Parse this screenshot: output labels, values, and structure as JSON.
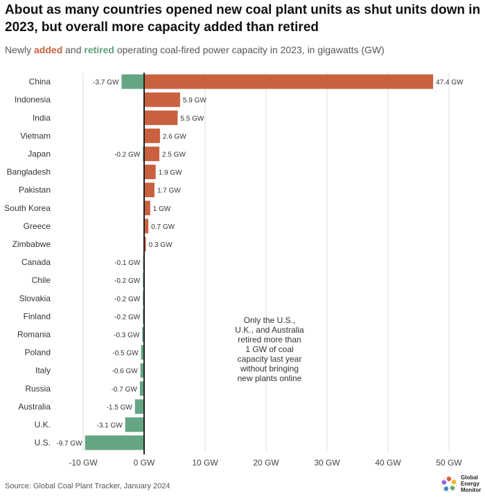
{
  "title": "About as many countries opened new coal plant units as shut units down in 2023, but overall more capacity added than retired",
  "subtitle": {
    "prefix": "Newly ",
    "added_word": "added",
    "middle": " and ",
    "retired_word": "retired",
    "suffix": " operating coal-fired power capacity in 2023, in gigawatts (GW)"
  },
  "source": "Source: Global Coal Plant Tracker, January 2024",
  "logo": {
    "line1": "Global",
    "line2": "Energy",
    "line3": "Monitor"
  },
  "colors": {
    "added": "#c9613f",
    "retired": "#64a583",
    "grid": "#dddddd",
    "zero_line": "#222222"
  },
  "chart_data": {
    "type": "bar",
    "orientation": "horizontal",
    "title": "About as many countries opened new coal plant units as shut units down in 2023, but overall more capacity added than retired",
    "xlabel": "",
    "ylabel": "",
    "xlim": [
      -10,
      50
    ],
    "x_ticks": [
      -10,
      0,
      10,
      20,
      30,
      40,
      50
    ],
    "x_tick_labels": [
      "-10 GW",
      "0 GW",
      "10 GW",
      "20 GW",
      "30 GW",
      "40 GW",
      "50 GW"
    ],
    "categories": [
      "China",
      "Indonesia",
      "India",
      "Vietnam",
      "Japan",
      "Bangladesh",
      "Pakistan",
      "South Korea",
      "Greece",
      "Zimbabwe",
      "Canada",
      "Chile",
      "Slovakia",
      "Finland",
      "Romania",
      "Poland",
      "Italy",
      "Russia",
      "Australia",
      "U.K.",
      "U.S."
    ],
    "series": [
      {
        "name": "added",
        "values": [
          47.4,
          5.9,
          5.5,
          2.6,
          2.5,
          1.9,
          1.7,
          1,
          0.7,
          0.3,
          null,
          null,
          null,
          null,
          null,
          null,
          null,
          null,
          null,
          null,
          null
        ],
        "labels": [
          "47.4 GW",
          "5.9 GW",
          "5.5 GW",
          "2.6 GW",
          "2.5 GW",
          "1.9 GW",
          "1.7 GW",
          "1 GW",
          "0.7 GW",
          "0.3 GW",
          "",
          "",
          "",
          "",
          "",
          "",
          "",
          "",
          "",
          "",
          ""
        ]
      },
      {
        "name": "retired",
        "values": [
          -3.7,
          null,
          null,
          null,
          -0.2,
          null,
          null,
          null,
          null,
          null,
          -0.1,
          -0.2,
          -0.2,
          -0.2,
          -0.3,
          -0.5,
          -0.6,
          -0.7,
          -1.5,
          -3.1,
          -9.7
        ],
        "labels": [
          "-3.7 GW",
          "",
          "",
          "",
          "-0.2 GW",
          "",
          "",
          "",
          "",
          "",
          "-0.1 GW",
          "-0.2 GW",
          "-0.2 GW",
          "-0.2 GW",
          "-0.3 GW",
          "-0.5 GW",
          "-0.6 GW",
          "-0.7 GW",
          "-1.5 GW",
          "-3.1 GW",
          "-9.7 GW"
        ]
      }
    ],
    "annotation": {
      "lines": [
        "Only the U.S.,",
        "U.K., and Australia",
        "retired more than",
        "1 GW of coal",
        "capacity last year",
        "without bringing",
        "new plants online"
      ],
      "anchor_x": 20
    }
  }
}
